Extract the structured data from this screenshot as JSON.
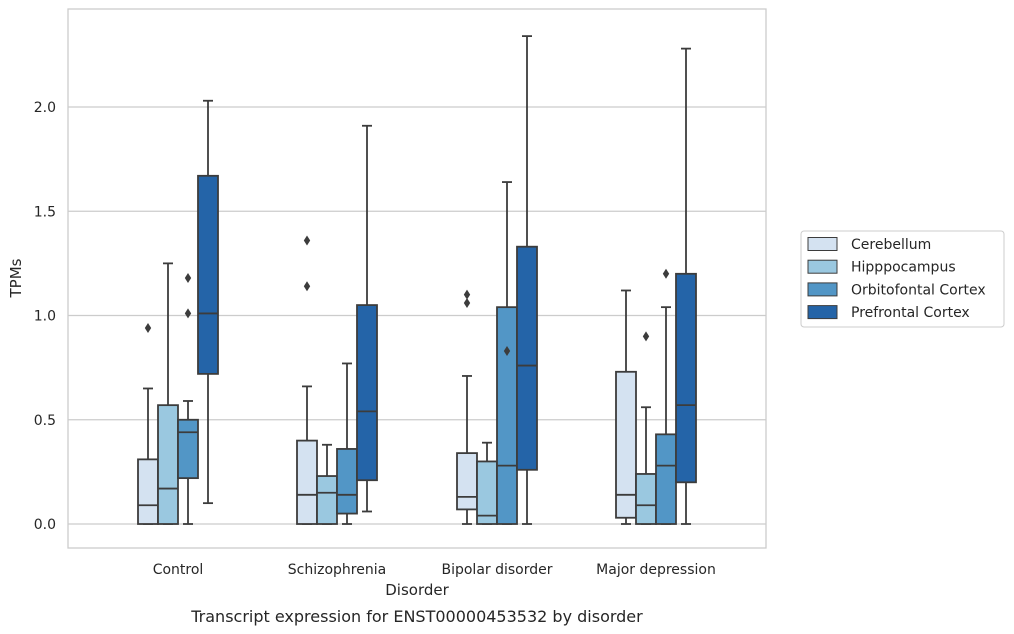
{
  "chart_data": {
    "type": "box",
    "caption": "Transcript expression for ENST00000453532 by disorder",
    "xlabel": "Disorder",
    "ylabel": "TPMs",
    "ylim": [
      -0.11,
      2.47
    ],
    "yticks": [
      {
        "value": 0.0,
        "label": "0.0"
      },
      {
        "value": 0.5,
        "label": "0.5"
      },
      {
        "value": 1.0,
        "label": "1.0"
      },
      {
        "value": 1.5,
        "label": "1.5"
      },
      {
        "value": 2.0,
        "label": "2.0"
      }
    ],
    "grid": "horizontal",
    "legend_position": "right",
    "categories": [
      "Control",
      "Schizophrenia",
      "Bipolar disorder",
      "Major depression"
    ],
    "series": [
      {
        "name": "Cerebellum",
        "color": "#d4e2f1",
        "boxes": [
          {
            "whislo": 0.0,
            "q1": 0.0,
            "med": 0.09,
            "q3": 0.31,
            "whishi": 0.65,
            "fliers": [
              0.94
            ]
          },
          {
            "whislo": 0.0,
            "q1": 0.0,
            "med": 0.14,
            "q3": 0.4,
            "whishi": 0.66,
            "fliers": [
              1.14,
              1.36
            ]
          },
          {
            "whislo": 0.0,
            "q1": 0.07,
            "med": 0.13,
            "q3": 0.34,
            "whishi": 0.71,
            "fliers": [
              1.06,
              1.1
            ]
          },
          {
            "whislo": 0.0,
            "q1": 0.03,
            "med": 0.14,
            "q3": 0.73,
            "whishi": 1.12,
            "fliers": []
          }
        ]
      },
      {
        "name": "Hipppocampus",
        "color": "#9ac8e0",
        "boxes": [
          {
            "whislo": 0.0,
            "q1": 0.0,
            "med": 0.17,
            "q3": 0.57,
            "whishi": 1.25,
            "fliers": []
          },
          {
            "whislo": 0.0,
            "q1": 0.0,
            "med": 0.15,
            "q3": 0.23,
            "whishi": 0.38,
            "fliers": []
          },
          {
            "whislo": 0.0,
            "q1": 0.0,
            "med": 0.04,
            "q3": 0.3,
            "whishi": 0.39,
            "fliers": []
          },
          {
            "whislo": 0.0,
            "q1": 0.0,
            "med": 0.09,
            "q3": 0.24,
            "whishi": 0.56,
            "fliers": [
              0.9
            ]
          }
        ]
      },
      {
        "name": "Orbitofontal Cortex",
        "color": "#5296c6",
        "boxes": [
          {
            "whislo": 0.0,
            "q1": 0.22,
            "med": 0.44,
            "q3": 0.5,
            "whishi": 0.59,
            "fliers": [
              1.01,
              1.18
            ]
          },
          {
            "whislo": 0.0,
            "q1": 0.05,
            "med": 0.14,
            "q3": 0.36,
            "whishi": 0.77,
            "fliers": []
          },
          {
            "whislo": 0.0,
            "q1": 0.0,
            "med": 0.28,
            "q3": 1.04,
            "whishi": 1.64,
            "fliers": [
              0.83
            ]
          },
          {
            "whislo": 0.0,
            "q1": 0.0,
            "med": 0.28,
            "q3": 0.43,
            "whishi": 1.04,
            "fliers": [
              1.2
            ]
          }
        ]
      },
      {
        "name": "Prefrontal Cortex",
        "color": "#2464a8",
        "boxes": [
          {
            "whislo": 0.1,
            "q1": 0.72,
            "med": 1.01,
            "q3": 1.67,
            "whishi": 2.03,
            "fliers": []
          },
          {
            "whislo": 0.06,
            "q1": 0.21,
            "med": 0.54,
            "q3": 1.05,
            "whishi": 1.91,
            "fliers": []
          },
          {
            "whislo": 0.0,
            "q1": 0.26,
            "med": 0.76,
            "q3": 1.33,
            "whishi": 2.34,
            "fliers": []
          },
          {
            "whislo": 0.0,
            "q1": 0.2,
            "med": 0.57,
            "q3": 1.2,
            "whishi": 2.28,
            "fliers": []
          }
        ]
      }
    ]
  }
}
